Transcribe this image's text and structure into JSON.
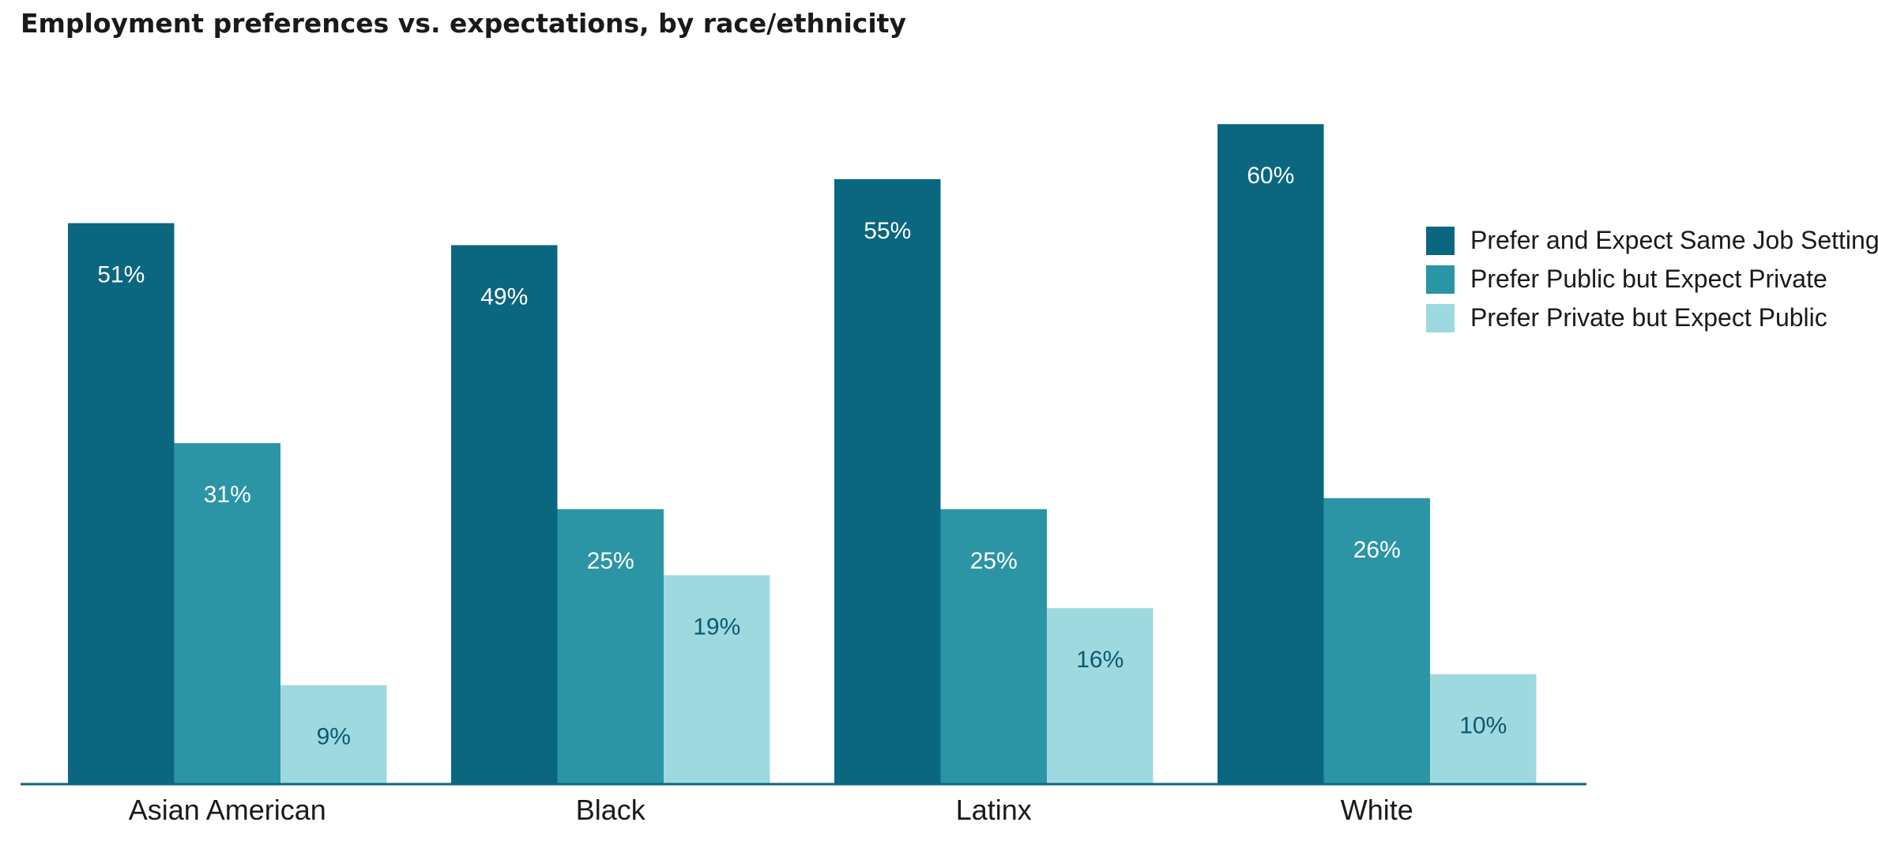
{
  "chart_data": {
    "type": "bar",
    "title": "Employment preferences vs. expectations, by race/ethnicity",
    "xlabel": "",
    "ylabel": "",
    "categories": [
      "Asian American",
      "Black",
      "Latinx",
      "White"
    ],
    "series": [
      {
        "name": "Prefer and Expect Same Job Setting",
        "values": [
          51,
          49,
          55,
          60
        ],
        "labels": [
          "51%",
          "49%",
          "55%",
          "60%"
        ],
        "color": "#0b677f",
        "label_color": "#ffffff"
      },
      {
        "name": "Prefer Public but Expect Private",
        "values": [
          31,
          25,
          25,
          26
        ],
        "labels": [
          "31%",
          "25%",
          "25%",
          "26%"
        ],
        "color": "#2b95a5",
        "label_color": "#ffffff"
      },
      {
        "name": "Prefer Private but Expect Public",
        "values": [
          9,
          19,
          16,
          10
        ],
        "labels": [
          "9%",
          "19%",
          "16%",
          "10%"
        ],
        "color": "#9fd9e0",
        "label_color": "#0b5a70"
      }
    ],
    "ylim": [
      0,
      60
    ],
    "grid": false,
    "legend": "right",
    "axis_color": "#0b677f"
  }
}
